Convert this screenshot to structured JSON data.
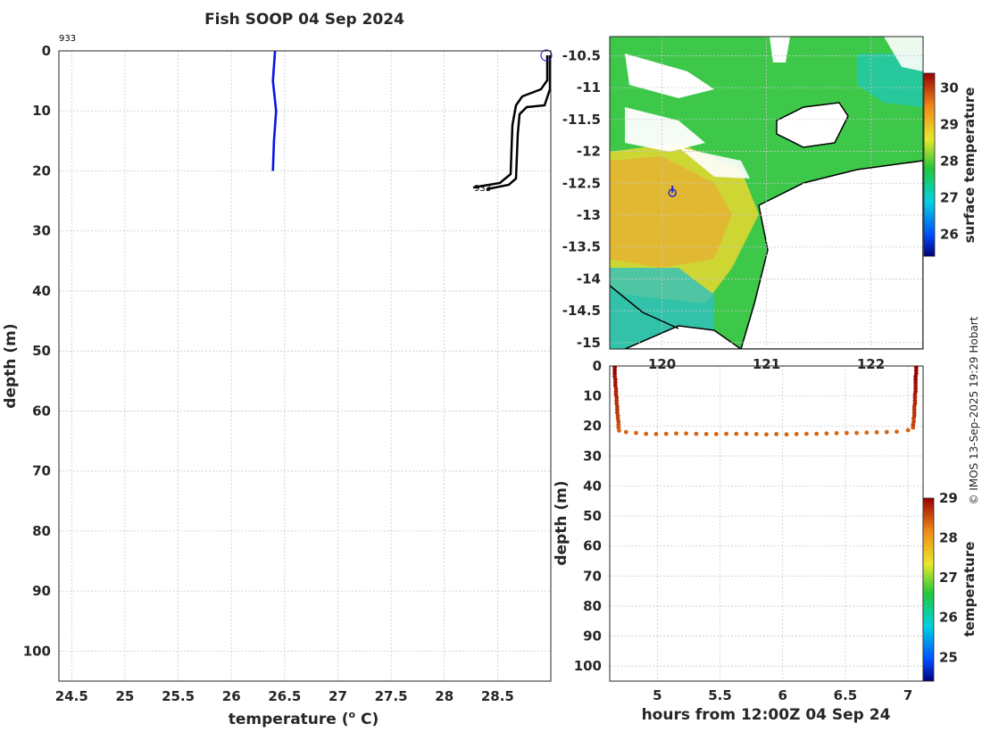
{
  "title": "Fish SOOP 04 Sep 2024",
  "credit": "© IMOS 13-Sep-2025 19:29 Hobart",
  "profile_id": "933",
  "colors": {
    "profile_line": "#0a14e6",
    "track_line": "#000000",
    "marker": "#2a2ad0"
  },
  "chart_data": [
    {
      "name": "profile",
      "type": "line",
      "title": "Fish SOOP 04 Sep 2024",
      "xlabel": "temperature (",
      "xlabel_sup": "o",
      "xlabel_end": " C)",
      "ylabel": "depth (m)",
      "xlim": [
        24.38,
        29.0
      ],
      "ylim": [
        0,
        105
      ],
      "y_reversed": true,
      "grid": true,
      "xticks": [
        24.5,
        25,
        25.5,
        26,
        26.5,
        27,
        27.5,
        28,
        28.5
      ],
      "xtick_labels": [
        "24.5",
        "25",
        "25.5",
        "26",
        "26.5",
        "27",
        "27.5",
        "28",
        "28.5"
      ],
      "yticks": [
        0,
        10,
        20,
        30,
        40,
        50,
        60,
        70,
        80,
        90,
        100
      ],
      "ytick_labels": [
        "0",
        "10",
        "20",
        "30",
        "40",
        "50",
        "60",
        "70",
        "80",
        "90",
        "100"
      ],
      "series": [
        {
          "name": "profile 933",
          "points": [
            [
              26.41,
              0
            ],
            [
              26.39,
              5
            ],
            [
              26.42,
              10
            ],
            [
              26.4,
              15
            ],
            [
              26.39,
              20
            ]
          ]
        }
      ]
    },
    {
      "name": "sst_map",
      "type": "heatmap",
      "xlim": [
        119.5,
        122.5
      ],
      "ylim": [
        -15.1,
        -10.2
      ],
      "xticks": [
        120,
        121,
        122
      ],
      "xtick_labels": [
        "120",
        "121",
        "122"
      ],
      "yticks": [
        -10.5,
        -11,
        -11.5,
        -12,
        -12.5,
        -13,
        -13.5,
        -14,
        -14.5,
        -15
      ],
      "ytick_labels": [
        "-10.5",
        "-11",
        "-11.5",
        "-12",
        "-12.5",
        "-13",
        "-13.5",
        "-14",
        "-14.5",
        "-15"
      ],
      "grid": true,
      "colorbar": {
        "label": "surface temperature",
        "range": [
          25.4,
          30.4
        ],
        "ticks": [
          26,
          27,
          28,
          29,
          30
        ],
        "tick_labels": [
          "26",
          "27",
          "28",
          "29",
          "30"
        ]
      },
      "marker": {
        "lon": 120.1,
        "lat": -12.65
      }
    },
    {
      "name": "time_depth",
      "type": "scatter",
      "xlabel": "hours from 12:00Z 04 Sep 24",
      "ylabel": "depth (m)",
      "xlim": [
        4.62,
        7.12
      ],
      "ylim": [
        0,
        105
      ],
      "y_reversed": true,
      "grid": true,
      "xticks": [
        5,
        5.5,
        6,
        6.5,
        7
      ],
      "xtick_labels": [
        "5",
        "5.5",
        "6",
        "6.5",
        "7"
      ],
      "yticks": [
        0,
        10,
        20,
        30,
        40,
        50,
        60,
        70,
        80,
        90,
        100
      ],
      "ytick_labels": [
        "0",
        "10",
        "20",
        "30",
        "40",
        "50",
        "60",
        "70",
        "80",
        "90",
        "100"
      ],
      "colorbar": {
        "label": "temperature",
        "range": [
          24.4,
          29.0
        ],
        "ticks": [
          25,
          26,
          27,
          28,
          29
        ],
        "tick_labels": [
          "25",
          "26",
          "27",
          "28",
          "29"
        ]
      },
      "points": [
        [
          4.66,
          0.5,
          29.0
        ],
        [
          4.66,
          1.5,
          29.0
        ],
        [
          4.66,
          2.5,
          29.0
        ],
        [
          4.66,
          3.5,
          28.9
        ],
        [
          4.665,
          4.5,
          28.9
        ],
        [
          4.665,
          5.5,
          28.9
        ],
        [
          4.665,
          6.5,
          28.9
        ],
        [
          4.67,
          7.5,
          28.8
        ],
        [
          4.67,
          8.5,
          28.8
        ],
        [
          4.67,
          9.5,
          28.8
        ],
        [
          4.675,
          10.5,
          28.8
        ],
        [
          4.675,
          11.5,
          28.7
        ],
        [
          4.675,
          12.5,
          28.7
        ],
        [
          4.68,
          13.5,
          28.7
        ],
        [
          4.68,
          14.5,
          28.7
        ],
        [
          4.68,
          15.5,
          28.7
        ],
        [
          4.685,
          16.5,
          28.6
        ],
        [
          4.685,
          17.5,
          28.6
        ],
        [
          4.69,
          18.5,
          28.6
        ],
        [
          4.69,
          19.5,
          28.5
        ],
        [
          4.69,
          20.5,
          28.5
        ],
        [
          4.695,
          21.5,
          28.4
        ],
        [
          4.75,
          22.0,
          28.4
        ],
        [
          4.83,
          22.3,
          28.4
        ],
        [
          4.91,
          22.6,
          28.4
        ],
        [
          4.99,
          22.7,
          28.4
        ],
        [
          5.07,
          22.6,
          28.4
        ],
        [
          5.15,
          22.5,
          28.4
        ],
        [
          5.23,
          22.5,
          28.4
        ],
        [
          5.31,
          22.6,
          28.4
        ],
        [
          5.39,
          22.7,
          28.4
        ],
        [
          5.47,
          22.7,
          28.4
        ],
        [
          5.55,
          22.6,
          28.4
        ],
        [
          5.63,
          22.6,
          28.4
        ],
        [
          5.71,
          22.6,
          28.4
        ],
        [
          5.79,
          22.7,
          28.4
        ],
        [
          5.87,
          22.8,
          28.4
        ],
        [
          5.95,
          22.7,
          28.4
        ],
        [
          6.03,
          22.8,
          28.4
        ],
        [
          6.11,
          22.7,
          28.4
        ],
        [
          6.19,
          22.6,
          28.4
        ],
        [
          6.27,
          22.6,
          28.4
        ],
        [
          6.35,
          22.5,
          28.4
        ],
        [
          6.43,
          22.4,
          28.4
        ],
        [
          6.51,
          22.3,
          28.4
        ],
        [
          6.59,
          22.3,
          28.4
        ],
        [
          6.67,
          22.2,
          28.4
        ],
        [
          6.75,
          22.1,
          28.4
        ],
        [
          6.83,
          22.0,
          28.4
        ],
        [
          6.91,
          21.9,
          28.4
        ],
        [
          7.0,
          21.4,
          28.4
        ],
        [
          7.04,
          20.5,
          28.5
        ],
        [
          7.04,
          19.5,
          28.6
        ],
        [
          7.045,
          18.5,
          28.6
        ],
        [
          7.045,
          17.5,
          28.6
        ],
        [
          7.05,
          16.5,
          28.7
        ],
        [
          7.05,
          15.5,
          28.7
        ],
        [
          7.05,
          14.5,
          28.7
        ],
        [
          7.05,
          13.5,
          28.7
        ],
        [
          7.055,
          12.5,
          28.8
        ],
        [
          7.055,
          11.5,
          28.8
        ],
        [
          7.055,
          10.5,
          28.8
        ],
        [
          7.055,
          9.5,
          28.8
        ],
        [
          7.06,
          8.5,
          28.9
        ],
        [
          7.06,
          7.5,
          28.9
        ],
        [
          7.06,
          6.5,
          28.9
        ],
        [
          7.06,
          5.5,
          28.9
        ],
        [
          7.06,
          4.5,
          29.0
        ],
        [
          7.06,
          3.5,
          29.0
        ],
        [
          7.065,
          2.5,
          29.0
        ],
        [
          7.065,
          1.5,
          29.0
        ],
        [
          7.065,
          0.5,
          29.0
        ]
      ]
    }
  ]
}
